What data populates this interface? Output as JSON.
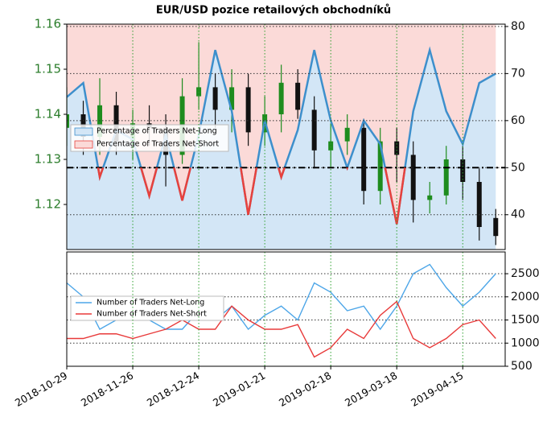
{
  "chart_data": [
    {
      "type": "candlestick",
      "title": "EUR/USD pozice retailových obchodníků",
      "x": [
        "2018-10-29",
        "2018-11-05",
        "2018-11-12",
        "2018-11-19",
        "2018-11-26",
        "2018-12-03",
        "2018-12-10",
        "2018-12-17",
        "2018-12-24",
        "2018-12-31",
        "2019-01-07",
        "2019-01-14",
        "2019-01-21",
        "2019-01-28",
        "2019-02-04",
        "2019-02-11",
        "2019-02-18",
        "2019-02-25",
        "2019-03-04",
        "2019-03-11",
        "2019-03-18",
        "2019-03-25",
        "2019-04-01",
        "2019-04-08",
        "2019-04-15",
        "2019-04-22",
        "2019-04-29"
      ],
      "open": [
        1.137,
        1.14,
        1.135,
        1.142,
        1.134,
        1.138,
        1.137,
        1.131,
        1.144,
        1.146,
        1.141,
        1.146,
        1.136,
        1.14,
        1.147,
        1.141,
        1.132,
        1.134,
        1.137,
        1.123,
        1.134,
        1.131,
        1.121,
        1.122,
        1.13,
        1.125,
        1.117
      ],
      "high": [
        1.146,
        1.143,
        1.148,
        1.145,
        1.141,
        1.142,
        1.14,
        1.148,
        1.156,
        1.149,
        1.15,
        1.149,
        1.144,
        1.151,
        1.15,
        1.144,
        1.138,
        1.14,
        1.139,
        1.137,
        1.137,
        1.134,
        1.125,
        1.133,
        1.133,
        1.128,
        1.119
      ],
      "low": [
        1.133,
        1.131,
        1.131,
        1.131,
        1.13,
        1.133,
        1.124,
        1.129,
        1.141,
        1.137,
        1.136,
        1.133,
        1.133,
        1.136,
        1.139,
        1.128,
        1.128,
        1.131,
        1.12,
        1.12,
        1.125,
        1.116,
        1.118,
        1.12,
        1.121,
        1.112,
        1.111
      ],
      "close": [
        1.14,
        1.135,
        1.142,
        1.134,
        1.138,
        1.137,
        1.131,
        1.144,
        1.146,
        1.141,
        1.146,
        1.136,
        1.14,
        1.147,
        1.141,
        1.132,
        1.134,
        1.137,
        1.123,
        1.134,
        1.131,
        1.121,
        1.122,
        1.13,
        1.125,
        1.115,
        1.113
      ],
      "up_color": "#1e8c1e",
      "down_color": "#111111",
      "series": [
        {
          "name": "Percentage of Traders Net-Long",
          "color": "#3d8fcc",
          "fill": "#d3e6f6",
          "axis": "y2",
          "values": [
            65,
            68,
            48,
            58,
            56,
            44,
            57,
            43,
            57,
            75,
            62,
            40,
            60,
            48,
            58,
            75,
            60,
            50,
            60,
            55,
            38,
            62,
            75,
            62,
            55,
            68,
            70
          ]
        },
        {
          "name": "Percentage of Traders Net-Short",
          "color": "#e8413c",
          "fill": "#fbdad8"
        }
      ],
      "threshold": 50,
      "xlim": [
        "2018-10-29",
        "2019-05-03"
      ],
      "xticks": [
        "2018-10-29",
        "2018-11-26",
        "2018-12-24",
        "2019-01-21",
        "2019-02-18",
        "2019-03-18",
        "2019-04-15"
      ],
      "ylim": [
        1.11,
        1.16
      ],
      "yticks": [
        1.12,
        1.13,
        1.14,
        1.15,
        1.16
      ],
      "y2lim": [
        32.6,
        80.5
      ],
      "y2ticks": [
        40,
        50,
        60,
        70,
        80
      ]
    },
    {
      "type": "line",
      "x": [
        "2018-10-29",
        "2018-11-05",
        "2018-11-12",
        "2018-11-19",
        "2018-11-26",
        "2018-12-03",
        "2018-12-10",
        "2018-12-17",
        "2018-12-24",
        "2018-12-31",
        "2019-01-07",
        "2019-01-14",
        "2019-01-21",
        "2019-01-28",
        "2019-02-04",
        "2019-02-11",
        "2019-02-18",
        "2019-02-25",
        "2019-03-04",
        "2019-03-11",
        "2019-03-18",
        "2019-03-25",
        "2019-04-01",
        "2019-04-08",
        "2019-04-15",
        "2019-04-22",
        "2019-04-29"
      ],
      "series": [
        {
          "name": "Number of Traders Net-Long",
          "color": "#4da6e8",
          "values": [
            2300,
            2000,
            1300,
            1500,
            1600,
            1500,
            1300,
            1300,
            1700,
            1500,
            1800,
            1300,
            1600,
            1800,
            1500,
            2300,
            2100,
            1700,
            1800,
            1300,
            1800,
            2500,
            2700,
            2200,
            1800,
            2100,
            2500
          ]
        },
        {
          "name": "Number of Traders Net-Short",
          "color": "#e83a3a",
          "values": [
            1100,
            1100,
            1200,
            1200,
            1100,
            1200,
            1300,
            1500,
            1300,
            1300,
            1800,
            1500,
            1300,
            1300,
            1400,
            700,
            900,
            1300,
            1100,
            1600,
            1900,
            1100,
            900,
            1100,
            1400,
            1500,
            1100
          ]
        }
      ],
      "xlim": [
        "2018-10-29",
        "2019-05-03"
      ],
      "ylim": [
        500,
        2970
      ],
      "yticks": [
        500,
        1000,
        1500,
        2000,
        2500
      ]
    }
  ]
}
